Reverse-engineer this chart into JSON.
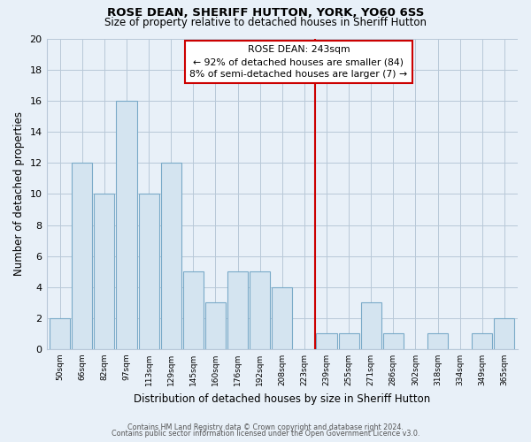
{
  "title": "ROSE DEAN, SHERIFF HUTTON, YORK, YO60 6SS",
  "subtitle": "Size of property relative to detached houses in Sheriff Hutton",
  "xlabel": "Distribution of detached houses by size in Sheriff Hutton",
  "ylabel": "Number of detached properties",
  "bar_color": "#d4e4f0",
  "bar_edge_color": "#7aaac8",
  "background_color": "#e8f0f8",
  "grid_color": "#b8c8d8",
  "bin_labels": [
    "50sqm",
    "66sqm",
    "82sqm",
    "97sqm",
    "113sqm",
    "129sqm",
    "145sqm",
    "160sqm",
    "176sqm",
    "192sqm",
    "208sqm",
    "223sqm",
    "239sqm",
    "255sqm",
    "271sqm",
    "286sqm",
    "302sqm",
    "318sqm",
    "334sqm",
    "349sqm",
    "365sqm"
  ],
  "bar_heights": [
    2,
    12,
    10,
    16,
    10,
    12,
    5,
    3,
    5,
    5,
    4,
    0,
    1,
    1,
    3,
    1,
    0,
    1,
    0,
    1,
    2
  ],
  "ylim": [
    0,
    20
  ],
  "yticks": [
    0,
    2,
    4,
    6,
    8,
    10,
    12,
    14,
    16,
    18,
    20
  ],
  "vline_x_index": 12,
  "vline_color": "#cc0000",
  "annotation_title": "ROSE DEAN: 243sqm",
  "annotation_line1": "← 92% of detached houses are smaller (84)",
  "annotation_line2": "8% of semi-detached houses are larger (7) →",
  "annotation_box_color": "#ffffff",
  "annotation_box_edge": "#cc0000",
  "footer_line1": "Contains HM Land Registry data © Crown copyright and database right 2024.",
  "footer_line2": "Contains public sector information licensed under the Open Government Licence v3.0."
}
